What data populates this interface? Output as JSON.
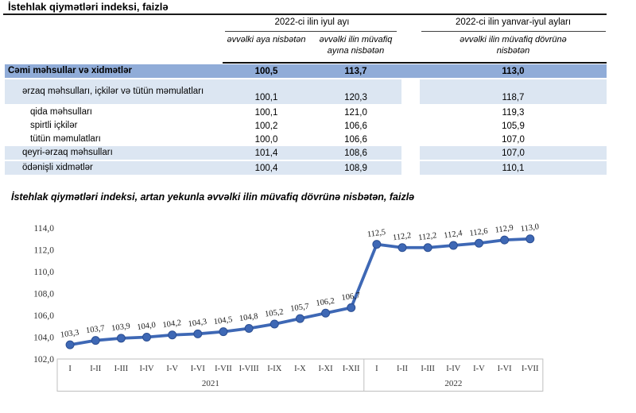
{
  "table": {
    "title": "İstehlak qiymətləri indeksi, faizlə",
    "col_groups": [
      {
        "label": "2022-ci ilin iyul ayı",
        "subheaders": [
          "əvvəlki aya nisbətən",
          "əvvəlki ilin müvafiq ayına nisbətən"
        ]
      },
      {
        "label": "2022-ci ilin yanvar-iyul ayları",
        "subheaders": [
          "əvvəlki ilin müvafiq dövrünə nisbətən"
        ]
      }
    ],
    "rows": [
      {
        "label": "Cəmi məhsullar və xidmətlər",
        "values": [
          "100,5",
          "113,7",
          "113,0"
        ],
        "style": "total",
        "indent": 0,
        "two_line": false
      },
      {
        "label": "ərzaq məhsulları, içkilər və tütün məmulatları",
        "values": [
          "100,1",
          "120,3",
          "118,7"
        ],
        "style": "alt",
        "indent": 1,
        "two_line": true
      },
      {
        "label": "qida məhsulları",
        "values": [
          "100,1",
          "121,0",
          "119,3"
        ],
        "style": "plain",
        "indent": 2,
        "two_line": false
      },
      {
        "label": "spirtli içkilər",
        "values": [
          "100,2",
          "106,6",
          "105,9"
        ],
        "style": "plain",
        "indent": 2,
        "two_line": false
      },
      {
        "label": "tütün məmulatları",
        "values": [
          "100,0",
          "106,6",
          "107,0"
        ],
        "style": "plain",
        "indent": 2,
        "two_line": false
      },
      {
        "label": "qeyri-ərzaq məhsulları",
        "values": [
          "101,4",
          "108,6",
          "107,0"
        ],
        "style": "alt",
        "indent": 1,
        "two_line": false
      },
      {
        "label": "ödənişli xidmətlər",
        "values": [
          "100,4",
          "108,9",
          "110,1"
        ],
        "style": "alt",
        "indent": 1,
        "two_line": false
      }
    ]
  },
  "chart_data": {
    "type": "line",
    "title": "İstehlak qiymətləri indeksi, artan yekunla əvvəlki ilin müvafiq dövrünə nisbətən, faizlə",
    "categories": [
      "I",
      "I-II",
      "I-III",
      "I-IV",
      "I-V",
      "I-VI",
      "I-VII",
      "I-VIII",
      "I-IX",
      "I-X",
      "I-XI",
      "I-XII",
      "I",
      "I-II",
      "I-III",
      "I-IV",
      "I-V",
      "I-VI",
      "I-VII"
    ],
    "year_groups": [
      {
        "label": "2021",
        "span": 12
      },
      {
        "label": "2022",
        "span": 7
      }
    ],
    "values": [
      103.3,
      103.7,
      103.9,
      104.0,
      104.2,
      104.3,
      104.5,
      104.8,
      105.2,
      105.7,
      106.2,
      106.7,
      112.5,
      112.2,
      112.2,
      112.4,
      112.6,
      112.9,
      113.0
    ],
    "point_labels": [
      "103,3",
      "103,7",
      "103,9",
      "104,0",
      "104,2",
      "104,3",
      "104,5",
      "104,8",
      "105,2",
      "105,7",
      "106,2",
      "106,7",
      "112,5",
      "112,2",
      "112,2",
      "112,4",
      "112,6",
      "112,9",
      "113,0"
    ],
    "ylim": [
      102,
      114
    ],
    "ytick_labels": [
      "114,0",
      "112,0",
      "110,0",
      "108,0",
      "106,0",
      "104,0",
      "102,0"
    ],
    "xlabel": "",
    "ylabel": "",
    "grid": false,
    "legend": "none"
  },
  "colors": {
    "total_row_bg": "#90ACD8",
    "alt_row_bg": "#DCE6F2",
    "line": "#3E68B5",
    "marker_edge": "#2C4F93",
    "axis_box": "#BFBFBF",
    "tick_text": "#333333",
    "label_text": "#1a1a1a"
  }
}
